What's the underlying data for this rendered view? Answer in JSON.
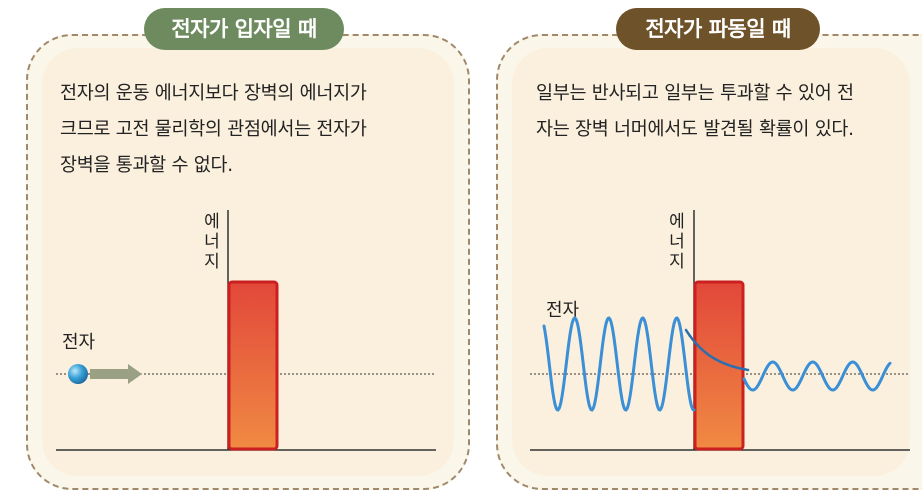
{
  "left_panel": {
    "title": "전자가 입자일 때",
    "description_lines": [
      "전자의 운동 에너지보다 장벽의 에너지가",
      "크므로 고전 물리학의 관점에서는 전자가",
      "장벽을 통과할 수 없다."
    ],
    "energy_axis_label": [
      "에",
      "너",
      "지"
    ],
    "electron_label": "전자"
  },
  "right_panel": {
    "title": "전자가 파동일 때",
    "description_lines": [
      "일부는 반사되고 일부는 투과할 수 있어 전",
      "자는 장벽 너머에서도 발견될 확률이 있다."
    ],
    "energy_axis_label": [
      "에",
      "너",
      "지"
    ],
    "electron_label": "전자"
  },
  "colors": {
    "left_badge": "#6e8b5f",
    "right_badge": "#6e5229",
    "barrier_top": "#e2473a",
    "barrier_bottom": "#f08a43",
    "barrier_border": "#cc1f1f",
    "wave": "#3a8fd6",
    "arrow": "#9aa084",
    "electron": "#3aa2d8"
  }
}
